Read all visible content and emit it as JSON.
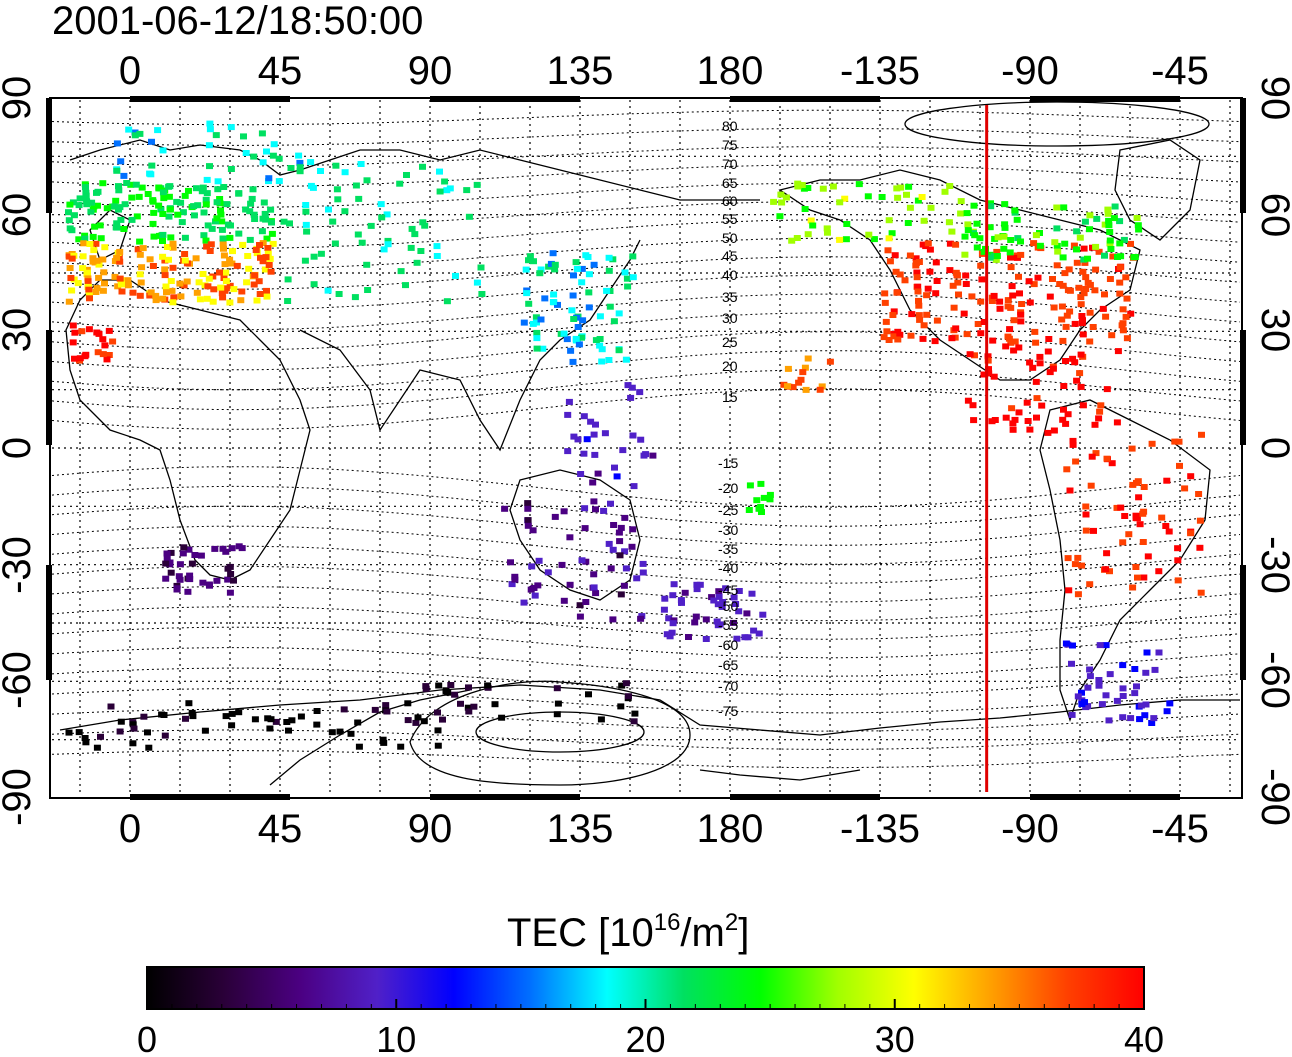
{
  "title": "2001-06-12/18:50:00",
  "map": {
    "lon_ticks": [
      "0",
      "45",
      "90",
      "135",
      "180",
      "-135",
      "-90",
      "-45"
    ],
    "lat_ticks": [
      "90",
      "60",
      "30",
      "0",
      "-30",
      "-60",
      "-90"
    ],
    "contour_labels_north": [
      "80",
      "75",
      "70",
      "65",
      "60",
      "55",
      "50",
      "45",
      "40",
      "35",
      "30",
      "25",
      "20",
      "15"
    ],
    "contour_labels_south": [
      "-15",
      "-20",
      "-25",
      "-30",
      "-35",
      "-40",
      "-45",
      "-50",
      "-55",
      "-60",
      "-65",
      "-70",
      "-75"
    ],
    "marker_line_longitude": -103,
    "marker_line_color": "#e00000"
  },
  "colorbar": {
    "label_main": "TEC  [10",
    "label_sup1": "16",
    "label_mid": "/m",
    "label_sup2": "2",
    "label_end": "]",
    "ticks": [
      "0",
      "10",
      "20",
      "30",
      "40"
    ],
    "range": [
      0,
      40
    ],
    "colors": [
      "#000000",
      "#2a0038",
      "#4b0082",
      "#5020c8",
      "#0000ff",
      "#0070ff",
      "#00ffff",
      "#00e060",
      "#00ff00",
      "#a0ff00",
      "#ffff00",
      "#ffa000",
      "#ff4000",
      "#ff0000"
    ]
  }
}
